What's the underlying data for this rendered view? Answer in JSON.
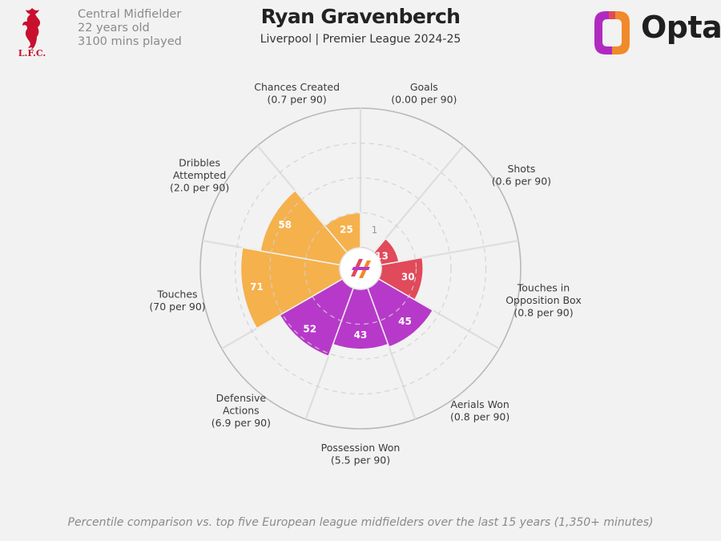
{
  "header": {
    "club_crest_text": "L.F.C.",
    "position": "Central Midfielder",
    "age": "22 years old",
    "minutes": "3100 mins played",
    "player_name": "Ryan Gravenberch",
    "subtitle": "Liverpool | Premier League 2024-25",
    "provider": "Opta"
  },
  "footnote": "Percentile comparison vs. top five European league midfielders over the last 15 years (1,350+ minutes)",
  "colors": {
    "attacking": "#e04a5a",
    "possession": "#b739c9",
    "creation": "#f5b14c"
  },
  "chart_data": {
    "type": "pie",
    "subtype": "polar-area",
    "scale": [
      0,
      100
    ],
    "rings": [
      25,
      50,
      75
    ],
    "categories": [
      {
        "name": "Goals",
        "stat": "(0.00 per 90)",
        "percentile": 1,
        "group": "attacking"
      },
      {
        "name": "Shots",
        "stat": "(0.6 per 90)",
        "percentile": 13,
        "group": "attacking"
      },
      {
        "name": "Touches in Opposition Box",
        "stat": "(0.8 per 90)",
        "percentile": 30,
        "group": "attacking"
      },
      {
        "name": "Aerials Won",
        "stat": "(0.8 per 90)",
        "percentile": 45,
        "group": "possession"
      },
      {
        "name": "Possession Won",
        "stat": "(5.5 per 90)",
        "percentile": 43,
        "group": "possession"
      },
      {
        "name": "Defensive Actions",
        "stat": "(6.9 per 90)",
        "percentile": 52,
        "group": "possession"
      },
      {
        "name": "Touches",
        "stat": "(70 per 90)",
        "percentile": 71,
        "group": "creation"
      },
      {
        "name": "Dribbles Attempted",
        "stat": "(2.0 per 90)",
        "percentile": 58,
        "group": "creation"
      },
      {
        "name": "Chances Created",
        "stat": "(0.7 per 90)",
        "percentile": 25,
        "group": "creation"
      }
    ]
  }
}
